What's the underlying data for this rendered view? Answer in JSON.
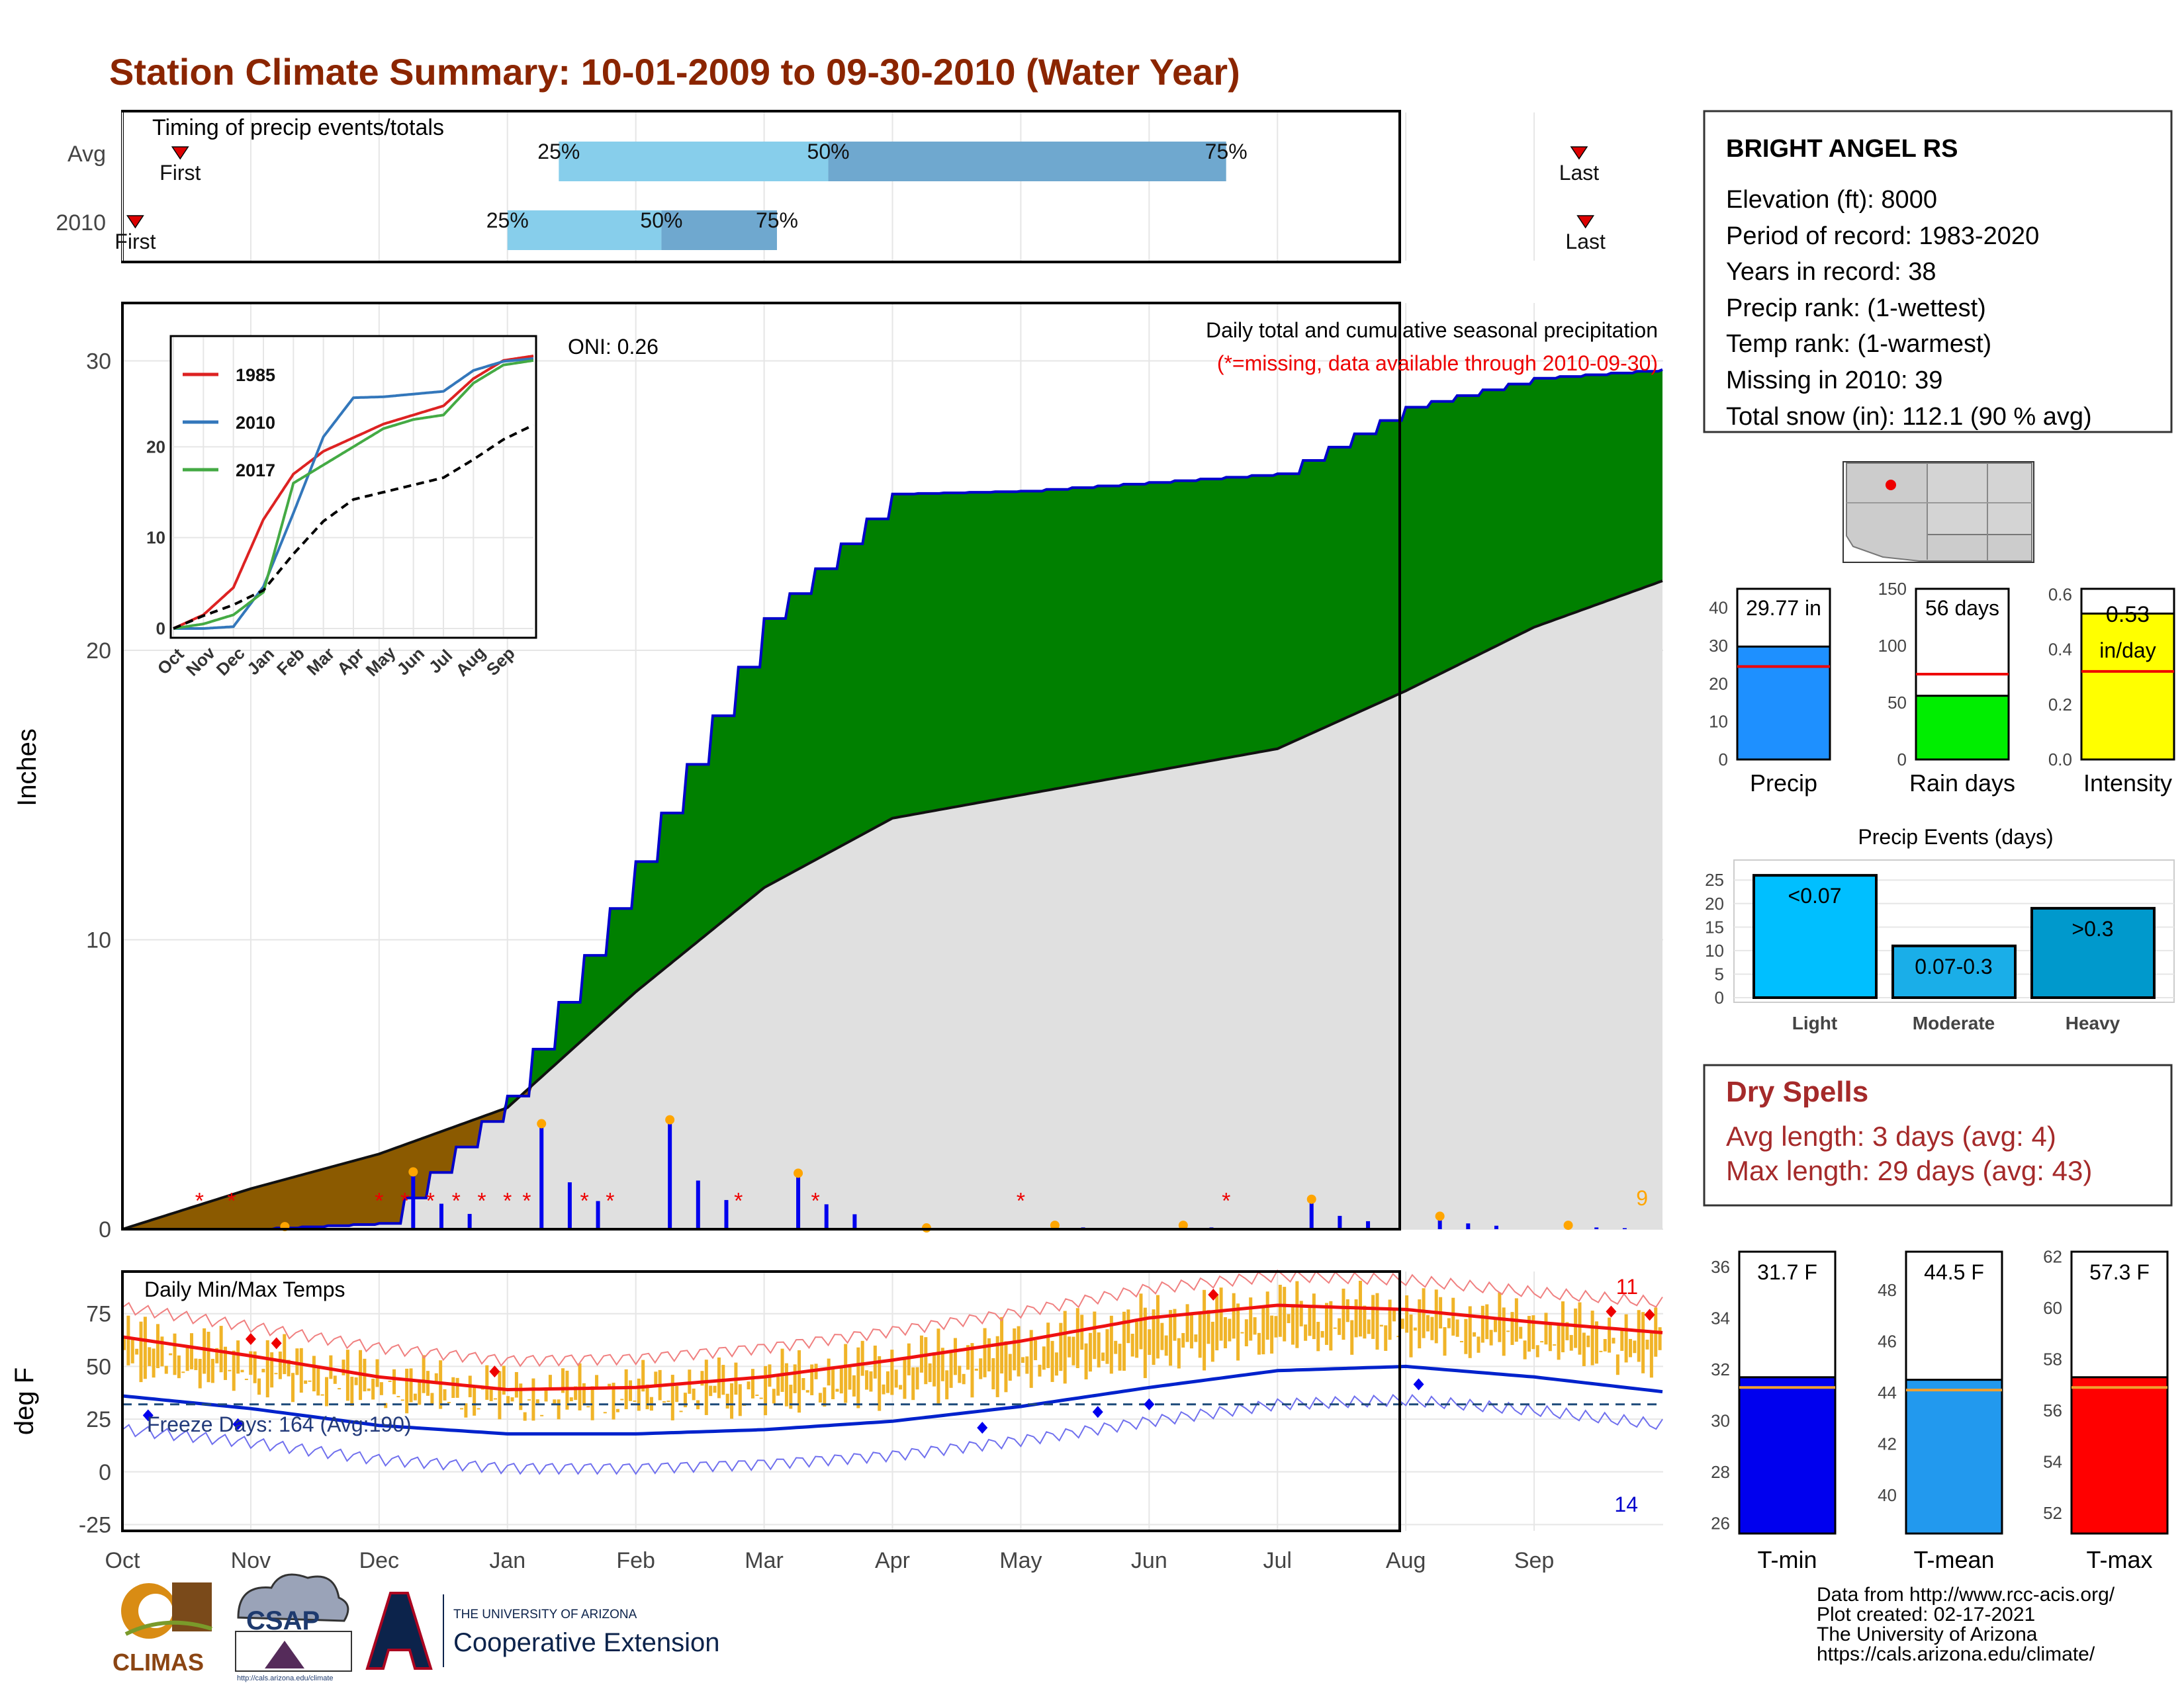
{
  "title": "Station Climate Summary: 10-01-2009 to 09-30-2010 (Water Year)",
  "timing": {
    "label": "Timing of precip events/totals",
    "rows": [
      {
        "name": "Avg",
        "first": "First",
        "last": "Last",
        "first_x": 0.45,
        "last_x": 11.35,
        "q25": 3.4,
        "q50": 5.5,
        "q75": 8.6
      },
      {
        "name": "2010",
        "first": "First",
        "last": "Last",
        "first_x": 0.1,
        "last_x": 11.4,
        "q25": 3.0,
        "q50": 4.2,
        "q75": 5.1
      }
    ],
    "pct_labels": [
      "25%",
      "50%",
      "75%"
    ],
    "colors": {
      "first_half": "#87ceeb",
      "second_half": "#6fa8cf",
      "marker": "#dd0000"
    }
  },
  "precip_panel": {
    "ylabel": "Inches",
    "ylim": [
      0,
      32
    ],
    "yticks": [
      0,
      10,
      20,
      30
    ],
    "note1": "Daily total and cumulative seasonal precipitation",
    "note2": "(*=missing, data available through 2010-09-30)",
    "oni": "ONI: 0.26",
    "count_label": "9",
    "colors": {
      "above": "#008000",
      "below": "#8b5a00",
      "avg_fill": "#e0e0e0",
      "line": "#0000cc",
      "bars": "#0000ee",
      "missing": "#ee0000",
      "marker": "#ffa500"
    }
  },
  "inset": {
    "xticks": [
      "Oct",
      "Nov",
      "Dec",
      "Jan",
      "Feb",
      "Mar",
      "Apr",
      "May",
      "Jun",
      "Jul",
      "Aug",
      "Sep"
    ],
    "yticks": [
      0,
      10,
      20
    ],
    "ylim": [
      0,
      30
    ],
    "legend": [
      {
        "name": "1985",
        "color": "#dd2222"
      },
      {
        "name": "2010",
        "color": "#3377bb"
      },
      {
        "name": "2017",
        "color": "#44aa44"
      }
    ]
  },
  "temp_panel": {
    "label": "Daily Min/Max Temps",
    "ylabel": "deg F",
    "ylim": [
      -28,
      95
    ],
    "yticks": [
      -25,
      0,
      25,
      50,
      75
    ],
    "freeze": "Freeze Days: 164 (Avg:190)",
    "count_hi": "11",
    "count_lo": "14",
    "freeze_line": 32,
    "colors": {
      "bars": "#f0b428",
      "avg_max": "#ee1111",
      "avg_min": "#0022cc",
      "rec_max": "#f08080",
      "rec_min": "#7070ee"
    }
  },
  "xaxis": {
    "months": [
      "Oct",
      "Nov",
      "Dec",
      "Jan",
      "Feb",
      "Mar",
      "Apr",
      "May",
      "Jun",
      "Jul",
      "Aug",
      "Sep"
    ]
  },
  "station": {
    "name": "BRIGHT ANGEL RS",
    "lines": [
      "Elevation (ft): 8000",
      "Period of record: 1983-2020",
      "Years in record: 38",
      "Precip rank:  (1-wettest)",
      "Temp rank:  (1-warmest)",
      "Missing in 2010: 39",
      "Total snow (in): 112.1 (90 % avg)"
    ]
  },
  "mini_bars": [
    {
      "label": "Precip",
      "value": 29.77,
      "value_text": "29.77 in",
      "avg": 24.5,
      "ymax": 45,
      "yticks": [
        0,
        10,
        20,
        30,
        40
      ],
      "color": "#1e90ff"
    },
    {
      "label": "Rain days",
      "value": 56,
      "value_text": "56 days",
      "avg": 75,
      "ymax": 150,
      "yticks": [
        0,
        50,
        100,
        150
      ],
      "color": "#00ee00"
    },
    {
      "label": "Intensity",
      "value": 0.53,
      "value_text": "0.53 in/day",
      "avg": 0.32,
      "ymax": 0.62,
      "yticks": [
        "0.0",
        "0.2",
        "0.4",
        "0.6"
      ],
      "color": "#ffff00"
    }
  ],
  "events": {
    "title": "Precip Events (days)",
    "yticks": [
      0,
      5,
      10,
      15,
      20,
      25
    ],
    "ymax": 27,
    "categories": [
      "Light",
      "Moderate",
      "Heavy"
    ],
    "values": [
      26,
      11,
      19
    ],
    "labels": [
      "<0.07",
      "0.07-0.3",
      ">0.3"
    ],
    "colors": [
      "#00bfff",
      "#1aaee8",
      "#0099cc"
    ]
  },
  "dry_spells": {
    "title": "Dry Spells",
    "lines": [
      "Avg length: 3 days (avg: 4)",
      "Max length: 29 days (avg: 43)"
    ],
    "color": "#a52a2a"
  },
  "temp_bars": [
    {
      "label": "T-min",
      "value": 31.7,
      "value_text": "31.7 F",
      "avg": 31.3,
      "ymin": 25.6,
      "ymax": 36.6,
      "yticks": [
        26,
        28,
        30,
        32,
        34,
        36
      ],
      "color": "#0000ee"
    },
    {
      "label": "T-mean",
      "value": 44.5,
      "value_text": "44.5 F",
      "avg": 44.1,
      "ymin": 38.5,
      "ymax": 49.5,
      "yticks": [
        40,
        42,
        44,
        46,
        48
      ],
      "color": "#2299ee"
    },
    {
      "label": "T-max",
      "value": 57.3,
      "value_text": "57.3 F",
      "avg": 56.9,
      "ymin": 51.2,
      "ymax": 62.2,
      "yticks": [
        52,
        54,
        56,
        58,
        60,
        62
      ],
      "color": "#ff0000"
    }
  ],
  "credits": [
    "Data from http://www.rcc-acis.org/",
    "Plot created: 02-17-2021",
    "The University of Arizona",
    "https://cals.arizona.edu/climate/"
  ],
  "logos": {
    "climas": "CLIMAS",
    "csap": "CSAP",
    "csap_url": "http://cals.arizona.edu/climate",
    "ua_small": "THE UNIVERSITY OF ARIZONA",
    "ua_big": "Cooperative Extension"
  },
  "chart_data": [
    {
      "type": "area",
      "title": "Daily total and cumulative seasonal precipitation",
      "ylabel": "Inches",
      "ylim": [
        0,
        32
      ],
      "series": [
        {
          "name": "2010",
          "x": [
            "Oct",
            "Nov",
            "Dec",
            "Jan",
            "Feb",
            "Mar",
            "Apr",
            "May",
            "Jun",
            "Jul",
            "Aug",
            "Sep",
            "Oct"
          ],
          "values": [
            0,
            0,
            0.2,
            4.6,
            12.7,
            21.1,
            25.4,
            25.5,
            25.8,
            26.1,
            28.4,
            29.4,
            29.7
          ]
        },
        {
          "name": "Avg",
          "x": [
            "Oct",
            "Nov",
            "Dec",
            "Jan",
            "Feb",
            "Mar",
            "Apr",
            "May",
            "Jun",
            "Jul",
            "Aug",
            "Sep",
            "Oct"
          ],
          "values": [
            0,
            1.4,
            2.6,
            4.2,
            8.2,
            11.8,
            14.2,
            15.0,
            15.8,
            16.6,
            18.6,
            20.8,
            22.4
          ]
        }
      ]
    },
    {
      "type": "line",
      "ylim": [
        0,
        30
      ],
      "categories": [
        "Oct",
        "Nov",
        "Dec",
        "Jan",
        "Feb",
        "Mar",
        "Apr",
        "May",
        "Jun",
        "Jul",
        "Aug",
        "Sep",
        "Oct"
      ],
      "series": [
        {
          "name": "1985",
          "values": [
            0,
            1.5,
            4.5,
            12,
            17,
            19.5,
            21,
            22.5,
            23.5,
            24.5,
            27.5,
            29.5,
            30
          ]
        },
        {
          "name": "2010",
          "values": [
            0,
            0,
            0.2,
            4.6,
            12.7,
            21.1,
            25.4,
            25.5,
            25.8,
            26.1,
            28.4,
            29.4,
            29.7
          ]
        },
        {
          "name": "2017",
          "values": [
            0,
            0.5,
            1.5,
            4,
            16,
            18,
            20,
            22,
            23,
            23.5,
            27,
            29,
            29.5
          ]
        },
        {
          "values": [
            0,
            1.4,
            2.6,
            4.2,
            8.2,
            11.8,
            14.2,
            15.0,
            15.8,
            16.6,
            18.6,
            20.8,
            22.4
          ]
        }
      ]
    },
    {
      "type": "line",
      "title": "Daily Min/Max Temps",
      "ylabel": "deg F",
      "ylim": [
        -28,
        95
      ],
      "categories": [
        "Oct",
        "Nov",
        "Dec",
        "Jan",
        "Feb",
        "Mar",
        "Apr",
        "May",
        "Jun",
        "Jul",
        "Aug",
        "Sep",
        "Oct"
      ],
      "series": [
        {
          "values": [
            64,
            55,
            45,
            39,
            40,
            45,
            53,
            62,
            73,
            79,
            77,
            71,
            66
          ]
        },
        {
          "values": [
            36,
            30,
            22,
            18,
            18,
            20,
            24,
            31,
            40,
            48,
            50,
            45,
            38
          ]
        }
      ]
    },
    {
      "type": "bar",
      "title": "Precip Events (days)",
      "categories": [
        "Light",
        "Moderate",
        "Heavy"
      ],
      "values": [
        26,
        11,
        19
      ]
    }
  ]
}
